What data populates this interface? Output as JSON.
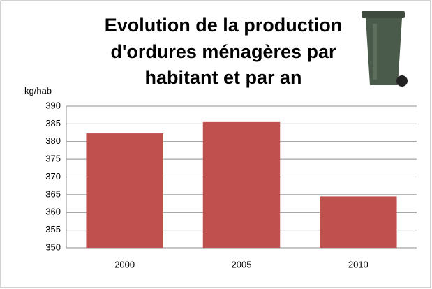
{
  "chart_data": {
    "type": "bar",
    "title": [
      "Evolution de la production",
      "d'ordures ménagères par",
      "habitant et par an"
    ],
    "y_label": "kg/hab",
    "categories": [
      "2000",
      "2005",
      "2010"
    ],
    "values": [
      382.3,
      385.5,
      364.5
    ],
    "color": "#c0504d",
    "ylim": [
      350,
      390
    ],
    "yticks": [
      350,
      355,
      360,
      365,
      370,
      375,
      380,
      385,
      390
    ],
    "grid": true
  }
}
